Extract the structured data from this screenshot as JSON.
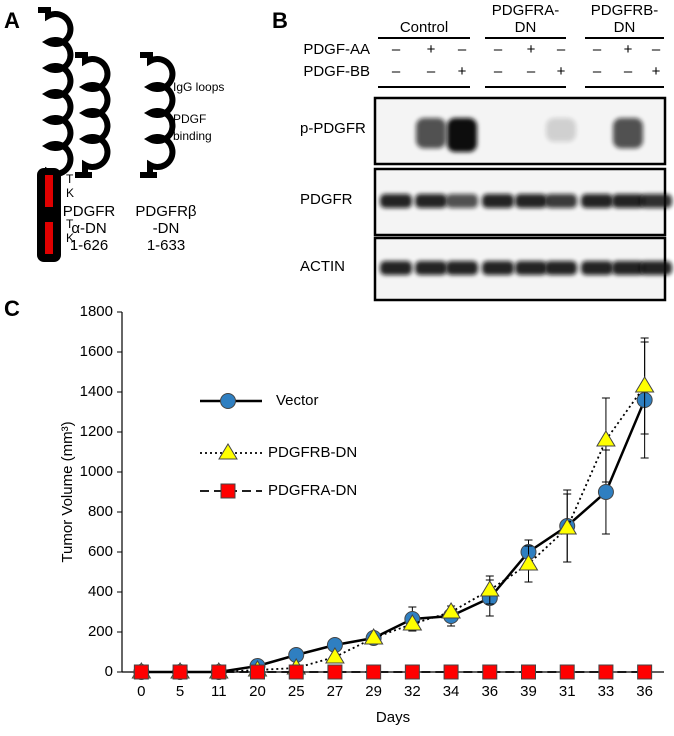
{
  "panel_a": {
    "label": "A",
    "tk_labels": [
      [
        "T",
        "K"
      ],
      [
        "T",
        "K"
      ]
    ],
    "constructs": [
      [
        "PDGFR",
        "α-DN",
        "1-626"
      ],
      [
        "PDGFRβ",
        "-DN",
        "1-633"
      ]
    ],
    "annotations": [
      [
        "IgG loops"
      ],
      [
        "PDGF",
        "binding"
      ]
    ]
  },
  "panel_b": {
    "label": "B",
    "groups": [
      [
        "Control"
      ],
      [
        "PDGFRA-",
        "DN"
      ],
      [
        "PDGFRB-",
        "DN"
      ]
    ],
    "treatments": [
      {
        "name": "PDGF-AA",
        "signs": [
          "–",
          "+",
          "–",
          "–",
          "+",
          "–",
          "–",
          "+",
          "–"
        ]
      },
      {
        "name": "PDGF-BB",
        "signs": [
          "–",
          "–",
          "+",
          "–",
          "–",
          "+",
          "–",
          "–",
          "+"
        ]
      }
    ],
    "blots": [
      "p-PDGFR",
      "PDGFR",
      "ACTIN"
    ]
  },
  "panel_c": {
    "label": "C"
  },
  "chart_data": {
    "type": "line",
    "x_label": "Days",
    "y_label": "Tumor Volume (mm³)",
    "categories": [
      "0",
      "5",
      "11",
      "20",
      "25",
      "27",
      "29",
      "32",
      "34",
      "36",
      "39",
      "31",
      "33",
      "36"
    ],
    "ylim": [
      0,
      1800
    ],
    "yticks": [
      0,
      200,
      400,
      600,
      800,
      1000,
      1200,
      1400,
      1600,
      1800
    ],
    "legend": "upper left",
    "grid": false,
    "series": [
      {
        "name": "Vector",
        "color": "#2f7fc1",
        "marker": "circle",
        "dash": "solid",
        "values": [
          0,
          0,
          0,
          30,
          85,
          135,
          170,
          265,
          280,
          370,
          600,
          730,
          900,
          1360
        ],
        "errors": [
          null,
          null,
          null,
          null,
          null,
          null,
          null,
          60,
          50,
          90,
          60,
          180,
          210,
          290
        ]
      },
      {
        "name": "PDGFRB-DN",
        "color": "#ffff00",
        "marker": "triangle",
        "dash": "dotted",
        "values": [
          0,
          0,
          0,
          10,
          20,
          75,
          170,
          240,
          300,
          410,
          540,
          720,
          1160,
          1430
        ],
        "errors": [
          null,
          null,
          null,
          null,
          null,
          null,
          null,
          null,
          null,
          70,
          90,
          170,
          210,
          240
        ]
      },
      {
        "name": "PDGFRA-DN",
        "color": "#ff0000",
        "marker": "square",
        "dash": "dashed",
        "values": [
          0,
          0,
          0,
          0,
          0,
          0,
          0,
          0,
          0,
          0,
          0,
          0,
          0,
          0
        ]
      }
    ]
  }
}
